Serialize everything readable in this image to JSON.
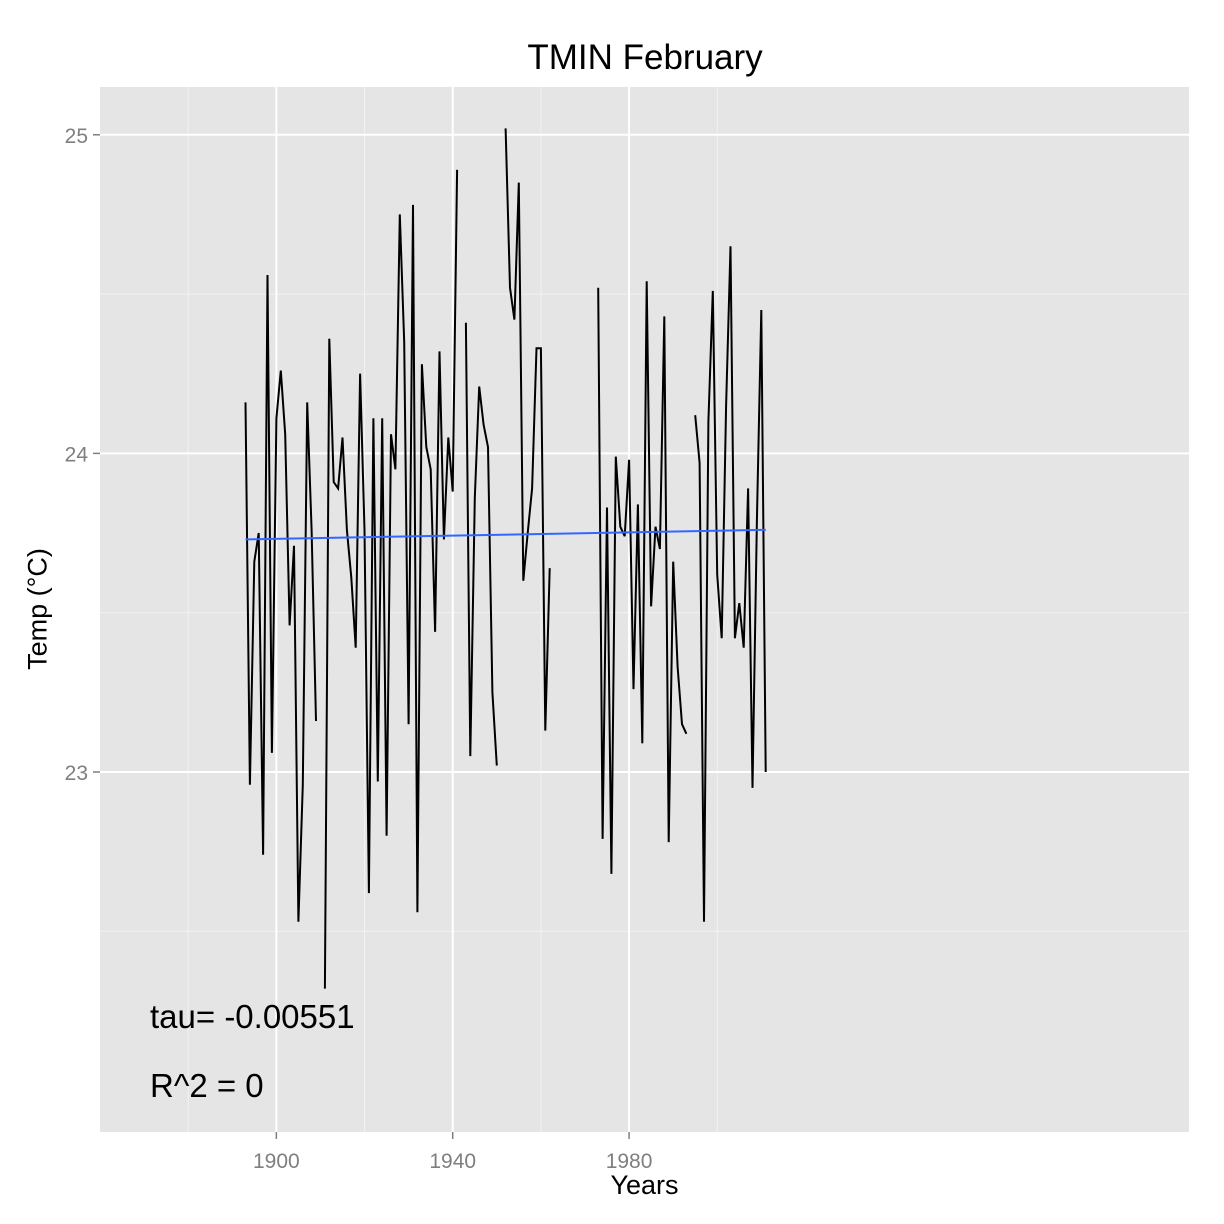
{
  "chart_data": {
    "type": "line",
    "title": "TMIN February",
    "xlabel": "Years",
    "ylabel": "Temp (°C)",
    "xlim": [
      1860,
      2107
    ],
    "ylim": [
      21.87,
      25.15
    ],
    "x_ticks": [
      1900,
      1940,
      1980
    ],
    "x_tick_labels": [
      "1900",
      "1940",
      "1980"
    ],
    "y_ticks": [
      23,
      24,
      25
    ],
    "y_tick_labels": [
      "23",
      "24",
      "25"
    ],
    "grid": true,
    "legend": "none",
    "colors": {
      "panel": "#e5e5e5",
      "grid_major": "#ffffff",
      "grid_minor": "#f2f2f2",
      "series": "#000000",
      "trend": "#3366ff",
      "tick_text": "#7f7f7f"
    },
    "series": [
      {
        "x": [
          1893,
          1894,
          1895,
          1896,
          1897,
          1898,
          1899,
          1900,
          1901,
          1902,
          1903,
          1904,
          1905,
          1906,
          1907,
          1908,
          1909,
          1911,
          1912,
          1913,
          1914,
          1915,
          1916,
          1917,
          1918,
          1919,
          1920,
          1921,
          1922,
          1923,
          1924,
          1925,
          1926,
          1927,
          1928,
          1929,
          1930,
          1931,
          1932,
          1933,
          1934,
          1935,
          1936,
          1937,
          1938,
          1939,
          1940,
          1941,
          1943,
          1944,
          1945,
          1946,
          1947,
          1948,
          1949,
          1950,
          1952,
          1953,
          1954,
          1955,
          1956,
          1957,
          1958,
          1959,
          1960,
          1961,
          1962,
          1973,
          1974,
          1975,
          1976,
          1977,
          1978,
          1979,
          1980,
          1981,
          1982,
          1983,
          1984,
          1985,
          1986,
          1987,
          1988,
          1989,
          1990,
          1991,
          1992,
          1993,
          1995,
          1996,
          1997,
          1998,
          1999,
          2000,
          2001,
          2002,
          2003,
          2004,
          2005,
          2006,
          2007,
          2008,
          2009,
          2010,
          2011
        ],
        "y": [
          24.16,
          22.96,
          23.66,
          23.75,
          22.74,
          24.56,
          23.06,
          24.11,
          24.26,
          24.06,
          23.46,
          23.71,
          22.53,
          22.96,
          24.16,
          23.76,
          23.16,
          22.32,
          24.36,
          23.91,
          23.89,
          24.05,
          23.76,
          23.61,
          23.39,
          24.25,
          23.76,
          22.62,
          24.11,
          22.97,
          24.11,
          22.8,
          24.06,
          23.95,
          24.75,
          24.35,
          23.15,
          24.78,
          22.56,
          24.28,
          24.02,
          23.95,
          23.44,
          24.32,
          23.73,
          24.05,
          23.88,
          24.89,
          24.41,
          23.05,
          23.86,
          24.21,
          24.09,
          24.02,
          23.25,
          23.02,
          25.02,
          24.52,
          24.42,
          24.85,
          23.6,
          23.75,
          23.89,
          24.33,
          24.33,
          23.13,
          23.64,
          24.52,
          22.79,
          23.83,
          22.68,
          23.99,
          23.77,
          23.74,
          23.98,
          23.26,
          23.84,
          23.09,
          24.54,
          23.52,
          23.77,
          23.7,
          24.43,
          22.78,
          23.66,
          23.33,
          23.15,
          23.12,
          24.12,
          23.97,
          22.53,
          24.1,
          24.51,
          23.62,
          23.42,
          24.15,
          24.65,
          23.42,
          23.53,
          23.39,
          23.89,
          22.95,
          23.79,
          24.45,
          23.0
        ]
      }
    ],
    "trend": {
      "x": [
        1893,
        2011
      ],
      "y": [
        23.73,
        23.76
      ]
    },
    "annotations": {
      "tau": "tau= -0.00551",
      "r2": "R^2 =  0"
    }
  }
}
